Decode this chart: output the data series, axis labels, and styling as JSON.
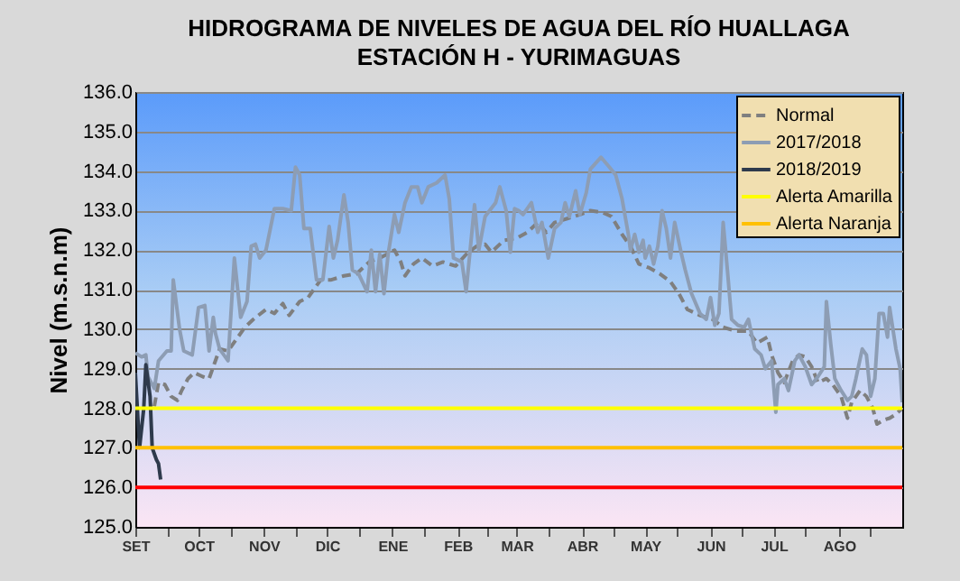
{
  "chart_data": {
    "type": "line",
    "title": "HIDROGRAMA DE NIVELES DE AGUA DEL RÍO HUALLAGA",
    "subtitle": "ESTACIÓN H - YURIMAGUAS",
    "ylabel": "Nivel (m.s.n.m)",
    "xlim": [
      "2018-09-01",
      "2019-08-31"
    ],
    "xticks": [
      {
        "value": "2018-09-01",
        "label": "SET"
      },
      {
        "value": "2018-09-16",
        "label": null
      },
      {
        "value": "2018-10-01",
        "label": "OCT"
      },
      {
        "value": "2018-10-16",
        "label": null
      },
      {
        "value": "2018-11-01",
        "label": "NOV"
      },
      {
        "value": "2018-11-16",
        "label": null
      },
      {
        "value": "2018-12-01",
        "label": "DIC"
      },
      {
        "value": "2018-12-16",
        "label": null
      },
      {
        "value": "2019-01-01",
        "label": "ENE"
      },
      {
        "value": "2019-01-16",
        "label": null
      },
      {
        "value": "2019-02-01",
        "label": "FEB"
      },
      {
        "value": "2019-02-15",
        "label": null
      },
      {
        "value": "2019-03-01",
        "label": "MAR"
      },
      {
        "value": "2019-03-16",
        "label": null
      },
      {
        "value": "2019-04-01",
        "label": "ABR"
      },
      {
        "value": "2019-04-16",
        "label": null
      },
      {
        "value": "2019-05-01",
        "label": "MAY"
      },
      {
        "value": "2019-05-16",
        "label": null
      },
      {
        "value": "2019-06-01",
        "label": "JUN"
      },
      {
        "value": "2019-06-16",
        "label": null
      },
      {
        "value": "2019-07-01",
        "label": "JUL"
      },
      {
        "value": "2019-07-16",
        "label": null
      },
      {
        "value": "2019-08-01",
        "label": "AGO"
      },
      {
        "value": "2019-08-16",
        "label": null
      }
    ],
    "ylim": [
      125,
      136
    ],
    "yticks": [
      {
        "value": 125,
        "label": "125.0"
      },
      {
        "value": 126,
        "label": "126.0"
      },
      {
        "value": 127,
        "label": "127.0"
      },
      {
        "value": 128,
        "label": "128.0"
      },
      {
        "value": 129,
        "label": "129.0"
      },
      {
        "value": 130,
        "label": "130.0"
      },
      {
        "value": 131,
        "label": "131.0"
      },
      {
        "value": 132,
        "label": "132.0"
      },
      {
        "value": 133,
        "label": "133.0"
      },
      {
        "value": 134,
        "label": "134.0"
      },
      {
        "value": 135,
        "label": "135.0"
      },
      {
        "value": 136,
        "label": "136.0"
      }
    ],
    "grid": "y",
    "legend": "top right",
    "series": [
      {
        "name": "Normal",
        "color": "#7f7f7f",
        "line_style": "dashed",
        "x": [
          "2018-09-10",
          "2018-09-12",
          "2018-09-15",
          "2018-09-18",
          "2018-09-21",
          "2018-09-23",
          "2018-09-26",
          "2018-09-29",
          "2018-10-03",
          "2018-10-06",
          "2018-10-09",
          "2018-10-11",
          "2018-10-15",
          "2018-10-19",
          "2018-10-23",
          "2018-10-27",
          "2018-11-02",
          "2018-11-06",
          "2018-11-10",
          "2018-11-13",
          "2018-11-18",
          "2018-11-22",
          "2018-11-28",
          "2018-12-03",
          "2018-12-09",
          "2018-12-15",
          "2018-12-21",
          "2018-12-26",
          "2019-01-02",
          "2019-01-05",
          "2019-01-07",
          "2019-01-11",
          "2019-01-15",
          "2019-01-20",
          "2019-01-25",
          "2019-01-31",
          "2019-02-06",
          "2019-02-10",
          "2019-02-14",
          "2019-02-17",
          "2019-02-23",
          "2019-03-01",
          "2019-03-06",
          "2019-03-11",
          "2019-03-15",
          "2019-03-19",
          "2019-03-25",
          "2019-03-31",
          "2019-04-05",
          "2019-04-11",
          "2019-04-15",
          "2019-04-20",
          "2019-04-24",
          "2019-04-28",
          "2019-05-03",
          "2019-05-08",
          "2019-05-13",
          "2019-05-17",
          "2019-05-21",
          "2019-05-27",
          "2019-06-02",
          "2019-06-07",
          "2019-06-13",
          "2019-06-19",
          "2019-06-23",
          "2019-06-28",
          "2019-06-30",
          "2019-07-03",
          "2019-07-06",
          "2019-07-10",
          "2019-07-13",
          "2019-07-16",
          "2019-07-19",
          "2019-07-22",
          "2019-07-26",
          "2019-07-29",
          "2019-08-02",
          "2019-08-05",
          "2019-08-07",
          "2019-08-11",
          "2019-08-14",
          "2019-08-17",
          "2019-08-19",
          "2019-08-22",
          "2019-08-25",
          "2019-08-28",
          "2019-08-31"
        ],
        "values": [
          128.05,
          128.65,
          128.6,
          128.3,
          128.2,
          128.45,
          128.75,
          128.9,
          128.8,
          128.75,
          129.2,
          129.5,
          129.45,
          129.75,
          130.05,
          130.25,
          130.5,
          130.4,
          130.65,
          130.35,
          130.7,
          130.8,
          131.25,
          131.25,
          131.35,
          131.4,
          131.7,
          131.8,
          132,
          131.7,
          131.35,
          131.65,
          131.8,
          131.6,
          131.7,
          131.6,
          131.95,
          132.1,
          132.15,
          131.95,
          132.25,
          132.3,
          132.45,
          132.7,
          132.45,
          132.7,
          132.8,
          132.9,
          133,
          132.95,
          132.85,
          132.4,
          132.1,
          131.65,
          131.55,
          131.4,
          131.2,
          130.9,
          130.5,
          130.35,
          130.25,
          130.05,
          129.95,
          129.95,
          129.65,
          129.8,
          129.35,
          128.9,
          128.65,
          129.2,
          129.35,
          129.3,
          129.05,
          128.65,
          128.75,
          128.6,
          128.3,
          127.75,
          128.15,
          128.45,
          128.3,
          128,
          127.6,
          127.7,
          127.75,
          127.85,
          128
        ]
      },
      {
        "name": "2017/2018",
        "color": "#8d9db4",
        "x": [
          "2018-09-01",
          "2018-09-04",
          "2018-09-06",
          "2018-09-07",
          "2018-09-10",
          "2018-09-12",
          "2018-09-16",
          "2018-09-18",
          "2018-09-19",
          "2018-09-22",
          "2018-09-24",
          "2018-09-28",
          "2018-10-01",
          "2018-10-04",
          "2018-10-06",
          "2018-10-08",
          "2018-10-09",
          "2018-10-11",
          "2018-10-15",
          "2018-10-18",
          "2018-10-21",
          "2018-10-24",
          "2018-10-26",
          "2018-10-28",
          "2018-10-30",
          "2018-11-02",
          "2018-11-06",
          "2018-11-10",
          "2018-11-14",
          "2018-11-16",
          "2018-11-18",
          "2018-11-20",
          "2018-11-23",
          "2018-11-26",
          "2018-11-29",
          "2018-12-02",
          "2018-12-04",
          "2018-12-06",
          "2018-12-09",
          "2018-12-11",
          "2018-12-13",
          "2018-12-16",
          "2018-12-20",
          "2018-12-22",
          "2018-12-24",
          "2018-12-26",
          "2018-12-28",
          "2018-12-30",
          "2019-01-02",
          "2019-01-04",
          "2019-01-07",
          "2019-01-10",
          "2019-01-13",
          "2019-01-15",
          "2019-01-18",
          "2019-01-22",
          "2019-01-26",
          "2019-01-28",
          "2019-01-30",
          "2019-02-03",
          "2019-02-05",
          "2019-02-09",
          "2019-02-11",
          "2019-02-14",
          "2019-02-19",
          "2019-02-21",
          "2019-02-24",
          "2019-02-26",
          "2019-02-28",
          "2019-03-02",
          "2019-03-04",
          "2019-03-08",
          "2019-03-11",
          "2019-03-13",
          "2019-03-16",
          "2019-03-19",
          "2019-03-22",
          "2019-03-24",
          "2019-03-26",
          "2019-03-29",
          "2019-03-31",
          "2019-04-03",
          "2019-04-05",
          "2019-04-10",
          "2019-04-14",
          "2019-04-17",
          "2019-04-20",
          "2019-04-23",
          "2019-04-24",
          "2019-04-26",
          "2019-04-28",
          "2019-04-30",
          "2019-05-01",
          "2019-05-03",
          "2019-05-05",
          "2019-05-07",
          "2019-05-09",
          "2019-05-11",
          "2019-05-13",
          "2019-05-15",
          "2019-05-18",
          "2019-05-20",
          "2019-05-23",
          "2019-05-27",
          "2019-05-30",
          "2019-06-01",
          "2019-06-03",
          "2019-06-05",
          "2019-06-07",
          "2019-06-09",
          "2019-06-11",
          "2019-06-14",
          "2019-06-17",
          "2019-06-19",
          "2019-06-22",
          "2019-06-25",
          "2019-06-27",
          "2019-06-30",
          "2019-07-02",
          "2019-07-03",
          "2019-07-06",
          "2019-07-08",
          "2019-07-11",
          "2019-07-13",
          "2019-07-16",
          "2019-07-19",
          "2019-07-22",
          "2019-07-25",
          "2019-07-26",
          "2019-07-28",
          "2019-07-30",
          "2019-08-02",
          "2019-08-05",
          "2019-08-07",
          "2019-08-09",
          "2019-08-12",
          "2019-08-14",
          "2019-08-16",
          "2019-08-18",
          "2019-08-20",
          "2019-08-22",
          "2019-08-24",
          "2019-08-25",
          "2019-08-28",
          "2019-08-30",
          "2019-08-31"
        ],
        "values": [
          129.4,
          129.3,
          129.35,
          128.8,
          128.5,
          129.2,
          129.45,
          129.45,
          131.25,
          130,
          129.45,
          129.35,
          130.55,
          130.6,
          129.45,
          130.3,
          129.9,
          129.5,
          129.2,
          131.8,
          130.3,
          130.7,
          132.1,
          132.15,
          131.8,
          132,
          133.05,
          133.05,
          133,
          134.1,
          133.9,
          132.55,
          132.55,
          131.25,
          131.25,
          132.6,
          131.8,
          132.25,
          133.4,
          132.7,
          131.5,
          131.4,
          130.95,
          132,
          130.95,
          131.9,
          130.9,
          131.9,
          132.9,
          132.45,
          133.2,
          133.6,
          133.6,
          133.2,
          133.6,
          133.7,
          133.9,
          133.3,
          131.8,
          131.7,
          130.95,
          133.15,
          132,
          132.85,
          133.2,
          133.6,
          133,
          131.95,
          133.05,
          133,
          132.9,
          133.2,
          132.45,
          132.7,
          131.8,
          132.55,
          132.7,
          133.2,
          132.85,
          133.5,
          132.9,
          133.45,
          134.05,
          134.35,
          134.1,
          133.9,
          133.3,
          132.4,
          132,
          132.4,
          131.95,
          132.25,
          131.8,
          132.1,
          131.65,
          132.1,
          133,
          132.55,
          131.8,
          132.7,
          131.95,
          131.5,
          130.9,
          130.4,
          130.25,
          130.8,
          130.1,
          130.4,
          132.7,
          131.5,
          130.25,
          130.1,
          130.05,
          130.25,
          129.5,
          129.35,
          129,
          129.2,
          127.9,
          128.6,
          128.75,
          128.45,
          129.2,
          129.35,
          129.05,
          128.6,
          128.8,
          129.05,
          130.7,
          129.65,
          128.75,
          128.45,
          128.2,
          128.3,
          128.75,
          129.5,
          129.35,
          128.3,
          128.75,
          130.4,
          130.4,
          129.8,
          130.55,
          129.5,
          129,
          128.15
        ]
      },
      {
        "name": "2018/2019",
        "color": "#2e3a4c",
        "x": [
          "2018-09-01",
          "2018-09-03",
          "2018-09-05",
          "2018-09-06",
          "2018-09-08",
          "2018-09-09",
          "2018-09-11",
          "2018-09-12",
          "2018-09-13"
        ],
        "values": [
          128.9,
          127,
          128,
          129.1,
          128.3,
          127,
          126.7,
          126.6,
          126.2
        ]
      },
      {
        "name": "Alerta Amarilla",
        "color": "#ffff00",
        "x": [
          "2018-09-01",
          "2019-08-31"
        ],
        "values": [
          128,
          128
        ]
      },
      {
        "name": "Alerta Naranja",
        "color": "#ffc000",
        "x": [
          "2018-09-01",
          "2019-08-31"
        ],
        "values": [
          127,
          127
        ]
      }
    ],
    "ref_lines": [
      {
        "axis": "y",
        "value": 126,
        "color": "#ff0000"
      }
    ]
  }
}
